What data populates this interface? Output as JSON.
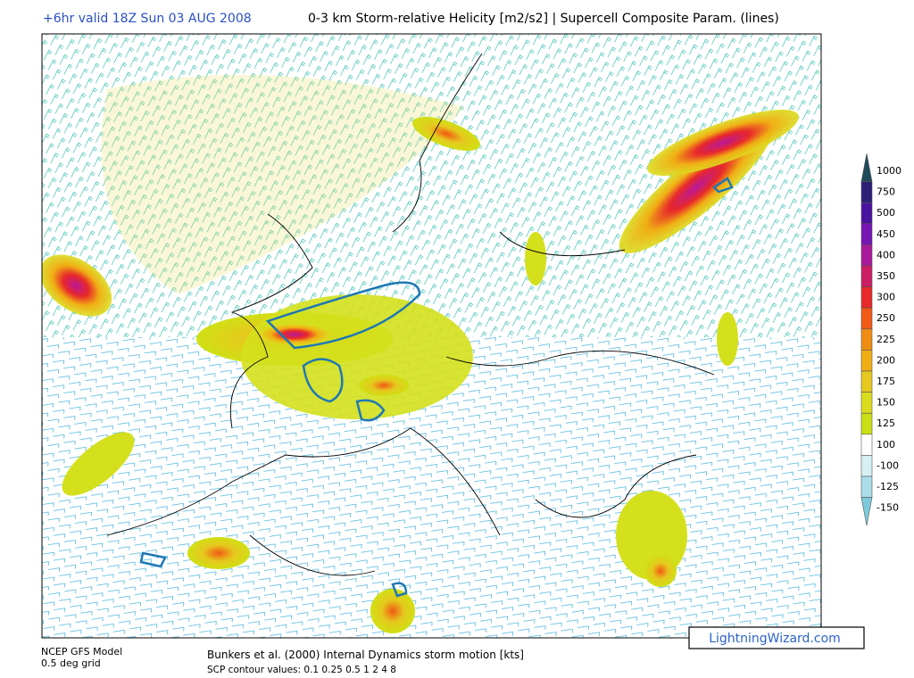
{
  "header": {
    "valid_time": "+6hr valid 18Z Sun 03 AUG 2008",
    "title": "0-3 km Storm-relative Helicity [m2/s2] | Supercell Composite Param. (lines)"
  },
  "legend": [
    {
      "label": "1000",
      "color": "#1e4a5a"
    },
    {
      "label": "750",
      "color": "#2c1f78"
    },
    {
      "label": "500",
      "color": "#4a12a0"
    },
    {
      "label": "450",
      "color": "#7614b4"
    },
    {
      "label": "400",
      "color": "#a8189a"
    },
    {
      "label": "350",
      "color": "#cc1e64"
    },
    {
      "label": "300",
      "color": "#e8282a"
    },
    {
      "label": "250",
      "color": "#f05a14"
    },
    {
      "label": "225",
      "color": "#f08c14"
    },
    {
      "label": "200",
      "color": "#f0ae14"
    },
    {
      "label": "175",
      "color": "#e6c81e"
    },
    {
      "label": "150",
      "color": "#dcdc1e"
    },
    {
      "label": "125",
      "color": "#c8e014"
    },
    {
      "label": "100",
      "color": "#ffffff"
    },
    {
      "label": "-100",
      "color": "#d6f0f4"
    },
    {
      "label": "-125",
      "color": "#aadde8"
    },
    {
      "label": "-150",
      "color": "#7ccadc"
    }
  ],
  "footer": {
    "model": "NCEP GFS Model",
    "grid": "0.5 deg grid",
    "motion": "Bunkers et al. (2000) Internal Dynamics storm motion [kts]",
    "scp": "SCP contour values: 0.1 0.25 0.5 1 2 4 8",
    "brand": "LightningWizard.com"
  }
}
